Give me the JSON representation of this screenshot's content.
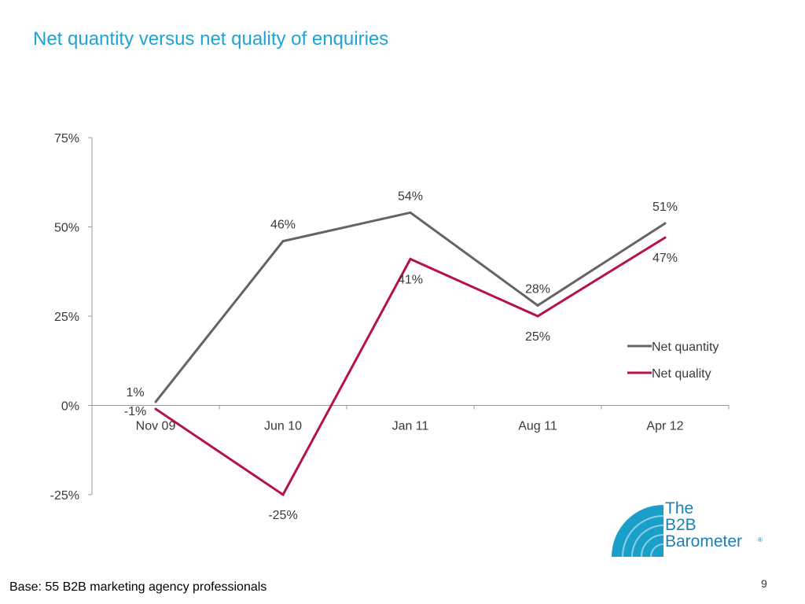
{
  "title": "Net quantity versus net quality of enquiries",
  "footer": {
    "base": "Base: 55 B2B marketing agency professionals",
    "page": "9"
  },
  "logo": {
    "line1": "The",
    "line2": "B2B",
    "line3": "Barometer",
    "reg": "®",
    "color": "#1f7fb2"
  },
  "chart_data": {
    "type": "line",
    "categories": [
      "Nov 09",
      "Jun 10",
      "Jan 11",
      "Aug 11",
      "Apr 12"
    ],
    "series": [
      {
        "name": "Net quantity",
        "values": [
          1,
          46,
          54,
          28,
          51
        ],
        "labels": [
          "1%",
          "46%",
          "54%",
          "28%",
          "51%"
        ],
        "color": "#646464"
      },
      {
        "name": "Net quality",
        "values": [
          -1,
          -25,
          41,
          25,
          47
        ],
        "labels": [
          "-1%",
          "-25%",
          "41%",
          "25%",
          "47%"
        ],
        "color": "#b5104f"
      }
    ],
    "yticks": [
      -25,
      0,
      25,
      50,
      75
    ],
    "ytick_labels": [
      "-25%",
      "0%",
      "25%",
      "50%",
      "75%"
    ],
    "ylim": [
      -25,
      75
    ],
    "grid": false,
    "legend": "right"
  }
}
